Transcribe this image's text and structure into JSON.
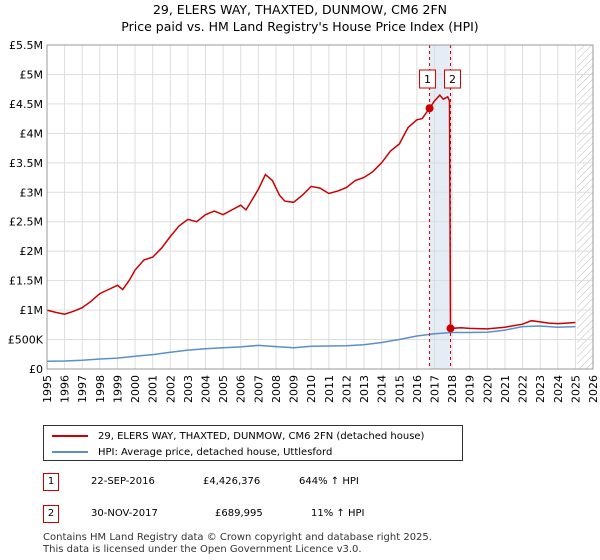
{
  "chart_data": {
    "type": "line",
    "title": "29, ELERS WAY, THAXTED, DUNMOW, CM6 2FN",
    "subtitle": "Price paid vs. HM Land Registry's House Price Index (HPI)",
    "xlabel": "",
    "ylabel": "",
    "xlim": [
      1995,
      2026
    ],
    "ylim": [
      0,
      5500000
    ],
    "x_ticks": [
      "1995",
      "1996",
      "1997",
      "1998",
      "1999",
      "2000",
      "2001",
      "2002",
      "2003",
      "2004",
      "2005",
      "2006",
      "2007",
      "2008",
      "2009",
      "2010",
      "2011",
      "2012",
      "2013",
      "2014",
      "2015",
      "2016",
      "2017",
      "2018",
      "2019",
      "2020",
      "2021",
      "2022",
      "2023",
      "2024",
      "2025",
      "2026"
    ],
    "y_ticks": [
      {
        "value": 0,
        "label": "£0"
      },
      {
        "value": 500000,
        "label": "£500K"
      },
      {
        "value": 1000000,
        "label": "£1M"
      },
      {
        "value": 1500000,
        "label": "£1.5M"
      },
      {
        "value": 2000000,
        "label": "£2M"
      },
      {
        "value": 2500000,
        "label": "£2.5M"
      },
      {
        "value": 3000000,
        "label": "£3M"
      },
      {
        "value": 3500000,
        "label": "£3.5M"
      },
      {
        "value": 4000000,
        "label": "£4M"
      },
      {
        "value": 4500000,
        "label": "£4.5M"
      },
      {
        "value": 5000000,
        "label": "£5M"
      },
      {
        "value": 5500000,
        "label": "£5.5M"
      }
    ],
    "grid": true,
    "hatch_from": 2025.1,
    "shade_ranges": [
      [
        2016.72,
        2017.91
      ]
    ],
    "series": [
      {
        "name": "29, ELERS WAY, THAXTED, DUNMOW, CM6 2FN (detached house)",
        "color": "#cc0000",
        "points": [
          [
            1995.0,
            1000000
          ],
          [
            1995.5,
            960000
          ],
          [
            1996.0,
            930000
          ],
          [
            1996.5,
            980000
          ],
          [
            1997.0,
            1040000
          ],
          [
            1997.5,
            1150000
          ],
          [
            1998.0,
            1280000
          ],
          [
            1998.5,
            1350000
          ],
          [
            1999.0,
            1420000
          ],
          [
            1999.3,
            1350000
          ],
          [
            1999.7,
            1520000
          ],
          [
            2000.0,
            1680000
          ],
          [
            2000.5,
            1850000
          ],
          [
            2001.0,
            1900000
          ],
          [
            2001.5,
            2050000
          ],
          [
            2002.0,
            2250000
          ],
          [
            2002.5,
            2430000
          ],
          [
            2003.0,
            2540000
          ],
          [
            2003.5,
            2500000
          ],
          [
            2004.0,
            2620000
          ],
          [
            2004.5,
            2680000
          ],
          [
            2005.0,
            2620000
          ],
          [
            2005.5,
            2700000
          ],
          [
            2006.0,
            2780000
          ],
          [
            2006.3,
            2700000
          ],
          [
            2006.6,
            2850000
          ],
          [
            2007.0,
            3050000
          ],
          [
            2007.4,
            3300000
          ],
          [
            2007.8,
            3200000
          ],
          [
            2008.2,
            2950000
          ],
          [
            2008.5,
            2850000
          ],
          [
            2009.0,
            2830000
          ],
          [
            2009.5,
            2950000
          ],
          [
            2010.0,
            3100000
          ],
          [
            2010.5,
            3070000
          ],
          [
            2011.0,
            2980000
          ],
          [
            2011.5,
            3020000
          ],
          [
            2012.0,
            3080000
          ],
          [
            2012.5,
            3200000
          ],
          [
            2013.0,
            3250000
          ],
          [
            2013.5,
            3350000
          ],
          [
            2014.0,
            3500000
          ],
          [
            2014.5,
            3700000
          ],
          [
            2015.0,
            3820000
          ],
          [
            2015.5,
            4100000
          ],
          [
            2016.0,
            4230000
          ],
          [
            2016.3,
            4250000
          ],
          [
            2016.72,
            4426376
          ],
          [
            2017.0,
            4550000
          ],
          [
            2017.3,
            4650000
          ],
          [
            2017.5,
            4580000
          ],
          [
            2017.75,
            4620000
          ],
          [
            2017.85,
            4550000
          ],
          [
            2017.91,
            689995
          ],
          [
            2018.5,
            700000
          ],
          [
            2019.0,
            690000
          ],
          [
            2020.0,
            680000
          ],
          [
            2021.0,
            710000
          ],
          [
            2022.0,
            760000
          ],
          [
            2022.5,
            820000
          ],
          [
            2023.0,
            800000
          ],
          [
            2023.5,
            780000
          ],
          [
            2024.0,
            770000
          ],
          [
            2024.5,
            780000
          ],
          [
            2025.0,
            790000
          ]
        ]
      },
      {
        "name": "HPI: Average price, detached house, Uttlesford",
        "color": "#5b8fc9",
        "points": [
          [
            1995.0,
            130000
          ],
          [
            1996.0,
            135000
          ],
          [
            1997.0,
            150000
          ],
          [
            1998.0,
            170000
          ],
          [
            1999.0,
            185000
          ],
          [
            2000.0,
            215000
          ],
          [
            2001.0,
            245000
          ],
          [
            2002.0,
            285000
          ],
          [
            2003.0,
            320000
          ],
          [
            2004.0,
            345000
          ],
          [
            2005.0,
            360000
          ],
          [
            2006.0,
            375000
          ],
          [
            2007.0,
            400000
          ],
          [
            2008.0,
            380000
          ],
          [
            2009.0,
            360000
          ],
          [
            2010.0,
            385000
          ],
          [
            2011.0,
            390000
          ],
          [
            2012.0,
            395000
          ],
          [
            2013.0,
            410000
          ],
          [
            2014.0,
            450000
          ],
          [
            2015.0,
            500000
          ],
          [
            2016.0,
            560000
          ],
          [
            2017.0,
            600000
          ],
          [
            2018.0,
            620000
          ],
          [
            2019.0,
            620000
          ],
          [
            2020.0,
            625000
          ],
          [
            2021.0,
            660000
          ],
          [
            2022.0,
            720000
          ],
          [
            2023.0,
            730000
          ],
          [
            2024.0,
            710000
          ],
          [
            2025.0,
            720000
          ]
        ]
      }
    ],
    "sales": [
      {
        "id": "1",
        "x": 2016.72,
        "y": 4426376,
        "date": "22-SEP-2016",
        "price": "£4,426,376",
        "hpi": "644% ↑ HPI"
      },
      {
        "id": "2",
        "x": 2017.91,
        "y": 689995,
        "date": "30-NOV-2017",
        "price": "£689,995",
        "hpi": "11% ↑ HPI"
      }
    ]
  },
  "legend": {
    "property": "29, ELERS WAY, THAXTED, DUNMOW, CM6 2FN (detached house)",
    "hpi": "HPI: Average price, detached house, Uttlesford"
  },
  "footer": {
    "line1": "Contains HM Land Registry data © Crown copyright and database right 2025.",
    "line2": "This data is licensed under the Open Government Licence v3.0."
  }
}
